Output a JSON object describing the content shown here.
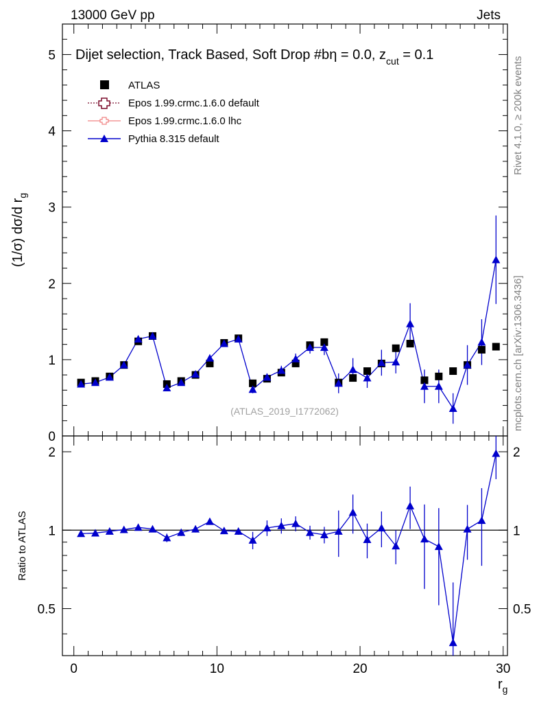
{
  "header": {
    "left": "13000 GeV pp",
    "right": "Jets"
  },
  "side": {
    "rivet": "Rivet 4.1.0, ≥ 200k events",
    "mcplots": "mcplots.cern.ch [arXiv:1306.3436]"
  },
  "chart_data": [
    {
      "type": "scatter",
      "panel": "main",
      "title": "Dijet selection, Track Based, Soft Drop #b",
      "title_eta": "η = 0.0, z",
      "title_cut_sub": "cut",
      "title_tail": " = 0.1",
      "watermark": "(ATLAS_2019_I1772062)",
      "ylabel": "(1/σ) dσ/d r",
      "ylabel_sub": "g",
      "xlim": [
        -0.8,
        30.3
      ],
      "ylim": [
        0,
        5.4
      ],
      "yticks": [
        0,
        1,
        2,
        3,
        4,
        5
      ],
      "ytick_labels": [
        "0",
        "1",
        "2",
        "3",
        "4",
        "5"
      ],
      "x": [
        0.5,
        1.5,
        2.5,
        3.5,
        4.5,
        5.5,
        6.5,
        7.5,
        8.5,
        9.5,
        10.5,
        11.5,
        12.5,
        13.5,
        14.5,
        15.5,
        16.5,
        17.5,
        18.5,
        19.5,
        20.5,
        21.5,
        22.5,
        23.5,
        24.5,
        25.5,
        26.5,
        27.5,
        28.5,
        29.5
      ],
      "legend": [
        {
          "label": "ATLAS",
          "marker": "square"
        },
        {
          "label": "Epos 1.99.crmc.1.6.0 default",
          "marker": "open-cross"
        },
        {
          "label": "Epos 1.99.crmc.1.6.0 lhc",
          "marker": "cross-line"
        },
        {
          "label": "Pythia 8.315 default",
          "marker": "triangle"
        }
      ],
      "series": [
        {
          "name": "ATLAS",
          "color": "#000000",
          "values": [
            0.7,
            0.72,
            0.78,
            0.93,
            1.24,
            1.31,
            0.68,
            0.72,
            0.8,
            0.95,
            1.22,
            1.28,
            0.69,
            0.75,
            0.83,
            0.95,
            1.19,
            1.23,
            0.7,
            0.76,
            0.85,
            0.95,
            1.15,
            1.21,
            0.73,
            0.78,
            0.85,
            0.93,
            1.13,
            1.17
          ]
        },
        {
          "name": "Pythia 8.315 default",
          "color": "#0000cc",
          "values": [
            0.68,
            0.7,
            0.77,
            0.93,
            1.27,
            1.31,
            0.63,
            0.7,
            0.81,
            1.02,
            1.21,
            1.27,
            0.61,
            0.77,
            0.86,
            1.01,
            1.16,
            1.16,
            0.69,
            0.87,
            0.76,
            0.96,
            0.97,
            1.47,
            0.65,
            0.65,
            0.36,
            0.93,
            1.23,
            2.31
          ],
          "errors": [
            0.02,
            0.02,
            0.02,
            0.02,
            0.03,
            0.03,
            0.03,
            0.03,
            0.03,
            0.03,
            0.03,
            0.03,
            0.05,
            0.05,
            0.06,
            0.07,
            0.08,
            0.1,
            0.13,
            0.15,
            0.13,
            0.17,
            0.15,
            0.27,
            0.22,
            0.22,
            0.2,
            0.26,
            0.3,
            0.58
          ]
        }
      ]
    },
    {
      "type": "line",
      "panel": "ratio",
      "ylabel": "Ratio to ATLAS",
      "xlabel": "r",
      "xlabel_sub": "g",
      "xlim": [
        -0.8,
        30.3
      ],
      "xticks": [
        0,
        10,
        20,
        30
      ],
      "xtick_labels": [
        "0",
        "10",
        "20",
        "30"
      ],
      "ylim": [
        0.33,
        2.3
      ],
      "yticks": [
        0.5,
        1,
        2
      ],
      "ytick_labels": [
        "0.5",
        "1",
        "2"
      ],
      "reference_line": 1,
      "x": [
        0.5,
        1.5,
        2.5,
        3.5,
        4.5,
        5.5,
        6.5,
        7.5,
        8.5,
        9.5,
        10.5,
        11.5,
        12.5,
        13.5,
        14.5,
        15.5,
        16.5,
        17.5,
        18.5,
        19.5,
        20.5,
        21.5,
        22.5,
        23.5,
        24.5,
        25.5,
        26.5,
        27.5,
        28.5,
        29.5
      ],
      "series": [
        {
          "name": "Pythia 8.315 default",
          "color": "#0000cc",
          "values": [
            0.97,
            0.975,
            0.99,
            1.005,
            1.025,
            1.01,
            0.935,
            0.98,
            1.01,
            1.08,
            0.995,
            0.99,
            0.915,
            1.02,
            1.04,
            1.06,
            0.98,
            0.96,
            0.99,
            1.17,
            0.92,
            1.02,
            0.87,
            1.24,
            0.925,
            0.865,
            0.37,
            1.01,
            1.09,
            1.97
          ],
          "errors": [
            0.02,
            0.02,
            0.02,
            0.02,
            0.025,
            0.025,
            0.035,
            0.03,
            0.03,
            0.03,
            0.025,
            0.03,
            0.07,
            0.07,
            0.07,
            0.07,
            0.06,
            0.07,
            0.2,
            0.2,
            0.14,
            0.16,
            0.13,
            0.23,
            0.33,
            0.35,
            0.26,
            0.24,
            0.36,
            0.4
          ]
        }
      ]
    }
  ]
}
